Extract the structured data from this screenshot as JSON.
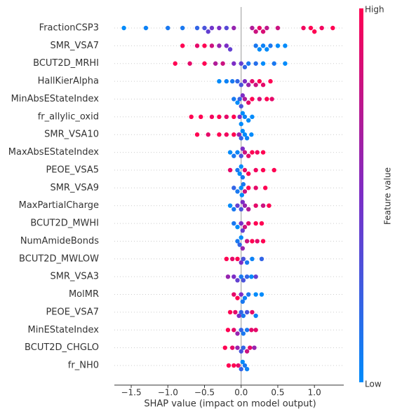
{
  "chart_data": {
    "type": "beeswarm",
    "x_label": "SHAP value (impact on model output)",
    "xlim": [
      -1.73,
      1.4
    ],
    "xticks": [
      {
        "value": -1.5,
        "label": "−1.5"
      },
      {
        "value": -1.0,
        "label": "−1.0"
      },
      {
        "value": -0.5,
        "label": "−0.5"
      },
      {
        "value": 0.0,
        "label": "0.0"
      },
      {
        "value": 0.5,
        "label": "0.5"
      },
      {
        "value": 1.0,
        "label": "1.0"
      }
    ],
    "colorbar": {
      "label": "Feature value",
      "high": "High",
      "low": "Low",
      "colors": [
        "#008bfb",
        "#7c2dc6",
        "#ff0052"
      ]
    },
    "series": [
      {
        "name": "FractionCSP3",
        "values": [
          -1.6,
          -1.3,
          -1.0,
          -0.8,
          -0.6,
          -0.5,
          -0.45,
          -0.4,
          -0.3,
          -0.2,
          -0.1,
          0.15,
          0.2,
          0.25,
          0.3,
          0.35,
          0.5,
          0.85,
          0.95,
          1.0,
          1.1,
          1.25
        ],
        "feature_values": [
          0,
          0.05,
          0.1,
          0.1,
          0.2,
          0.3,
          0.4,
          0.45,
          0.5,
          0.35,
          0.6,
          0.7,
          0.8,
          0.9,
          0.85,
          0.75,
          0.8,
          0.95,
          1,
          1,
          0.95,
          1
        ]
      },
      {
        "name": "SMR_VSA7",
        "values": [
          -0.8,
          -0.6,
          -0.5,
          -0.4,
          -0.3,
          -0.2,
          -0.15,
          0.2,
          0.25,
          0.3,
          0.35,
          0.4,
          0.5,
          0.6
        ],
        "feature_values": [
          1,
          0.9,
          1,
          0.8,
          0.6,
          0.5,
          0.4,
          0.1,
          0,
          0.05,
          0,
          0.1,
          0,
          0
        ]
      },
      {
        "name": "BCUT2D_MRHI",
        "values": [
          -0.9,
          -0.7,
          -0.5,
          -0.35,
          -0.25,
          -0.1,
          0,
          0.05,
          0.1,
          0.2,
          0.3,
          0.45,
          0.6
        ],
        "feature_values": [
          1,
          0.9,
          1,
          0.7,
          0.8,
          0.5,
          0.4,
          0.2,
          0.1,
          0.15,
          0,
          0.1,
          0
        ]
      },
      {
        "name": "HallKierAlpha",
        "values": [
          -0.3,
          -0.2,
          -0.12,
          -0.05,
          0,
          0.05,
          0.1,
          0.15,
          0.2,
          0.25,
          0.3,
          0.4
        ],
        "feature_values": [
          0,
          0.05,
          0.1,
          0.2,
          0.3,
          0.5,
          0.6,
          0.9,
          0.8,
          1,
          0.9,
          1
        ]
      },
      {
        "name": "MinAbsEStateIndex",
        "values": [
          -0.1,
          -0.05,
          -0.02,
          0,
          0.02,
          0.05,
          0.1,
          0.15,
          0.25,
          0.35,
          0.42
        ],
        "feature_values": [
          0.1,
          0,
          0.2,
          0.3,
          0.5,
          0.7,
          0.9,
          1,
          0.85,
          1,
          0.9
        ]
      },
      {
        "name": "fr_allylic_oxid",
        "values": [
          -0.68,
          -0.55,
          -0.4,
          -0.3,
          -0.2,
          -0.1,
          -0.02,
          0,
          0.02,
          0.05,
          0.1,
          0.15
        ],
        "feature_values": [
          1,
          1,
          0.95,
          1,
          0.9,
          1,
          0.5,
          0,
          0,
          0.05,
          0,
          0
        ]
      },
      {
        "name": "SMR_VSA10",
        "values": [
          -0.6,
          -0.45,
          -0.3,
          -0.2,
          -0.1,
          -0.03,
          0,
          0.02,
          0.05,
          0.08,
          0.14
        ],
        "feature_values": [
          1,
          0.9,
          1,
          0.95,
          1,
          0.6,
          0.2,
          0,
          0,
          0.05,
          0
        ]
      },
      {
        "name": "MaxAbsEStateIndex",
        "values": [
          -0.15,
          -0.1,
          -0.05,
          0,
          0.02,
          0.05,
          0.1,
          0.15,
          0.22,
          0.3
        ],
        "feature_values": [
          0,
          0.1,
          0.05,
          0.3,
          0.5,
          0.8,
          0.9,
          1,
          0.95,
          1
        ]
      },
      {
        "name": "PEOE_VSA5",
        "values": [
          -0.15,
          -0.05,
          -0.02,
          0,
          0.02,
          0.05,
          0.1,
          0.2,
          0.3,
          0.45
        ],
        "feature_values": [
          0.9,
          0.1,
          0,
          0,
          0.1,
          0.9,
          1,
          0.95,
          1,
          1
        ]
      },
      {
        "name": "SMR_VSA9",
        "values": [
          -0.1,
          -0.05,
          0,
          0.01,
          0.03,
          0.05,
          0.1,
          0.2,
          0.33
        ],
        "feature_values": [
          0.2,
          0.1,
          0,
          0,
          0.1,
          0.8,
          1,
          0.9,
          1
        ]
      },
      {
        "name": "MaxPartialCharge",
        "values": [
          -0.15,
          -0.1,
          -0.05,
          0,
          0.02,
          0.05,
          0.1,
          0.2,
          0.3,
          0.38
        ],
        "feature_values": [
          0,
          0.1,
          0.4,
          0.3,
          0.5,
          0.6,
          0.7,
          0.9,
          0.8,
          1
        ]
      },
      {
        "name": "BCUT2D_MWHI",
        "values": [
          -0.1,
          -0.05,
          0,
          0.02,
          0.05,
          0.1,
          0.2,
          0.28
        ],
        "feature_values": [
          0.1,
          0,
          0.5,
          0.4,
          0.8,
          0.9,
          1,
          1
        ]
      },
      {
        "name": "NumAmideBonds",
        "values": [
          -0.05,
          -0.02,
          0,
          0.02,
          0.08,
          0.15,
          0.22,
          0.3
        ],
        "feature_values": [
          0.1,
          0.2,
          0,
          0.6,
          0.8,
          1,
          0.9,
          1
        ]
      },
      {
        "name": "BCUT2D_MWLOW",
        "values": [
          -0.2,
          -0.12,
          -0.05,
          0,
          0.03,
          0.08,
          0.15,
          0.28
        ],
        "feature_values": [
          1,
          0.9,
          1,
          0.5,
          0.3,
          0.1,
          0.05,
          0.2
        ]
      },
      {
        "name": "SMR_VSA3",
        "values": [
          -0.18,
          -0.1,
          -0.05,
          0,
          0.03,
          0.08,
          0.14,
          0.2
        ],
        "feature_values": [
          0.6,
          0.5,
          0.4,
          0.1,
          0.3,
          0.2,
          0,
          0.4
        ]
      },
      {
        "name": "MolMR",
        "values": [
          -0.1,
          -0.05,
          0,
          0.02,
          0.05,
          0.1,
          0.2,
          0.28
        ],
        "feature_values": [
          0.9,
          1,
          0.5,
          0.1,
          0.05,
          0.1,
          0,
          0
        ]
      },
      {
        "name": "PEOE_VSA7",
        "values": [
          -0.15,
          -0.08,
          -0.03,
          0,
          0.03,
          0.08,
          0.15,
          0.2
        ],
        "feature_values": [
          1,
          0.9,
          0.5,
          0.2,
          0.1,
          0.3,
          0.9,
          0.05
        ]
      },
      {
        "name": "MinEStateIndex",
        "values": [
          -0.18,
          -0.1,
          -0.05,
          0,
          0.03,
          0.08,
          0.14,
          0.2
        ],
        "feature_values": [
          1,
          0.9,
          0.6,
          0.2,
          0.1,
          0.1,
          0.9,
          0.9
        ]
      },
      {
        "name": "BCUT2D_CHGLO",
        "values": [
          -0.22,
          -0.12,
          -0.05,
          0,
          0.03,
          0.08,
          0.12,
          0.18
        ],
        "feature_values": [
          1,
          0.9,
          0.6,
          0.3,
          0.2,
          0.8,
          0.9,
          0.6
        ]
      },
      {
        "name": "fr_NH0",
        "values": [
          -0.17,
          -0.1,
          -0.04,
          0,
          0.02,
          0.05,
          0.08
        ],
        "feature_values": [
          1,
          1,
          0.9,
          0.2,
          0,
          0.1,
          0.05
        ]
      }
    ]
  }
}
